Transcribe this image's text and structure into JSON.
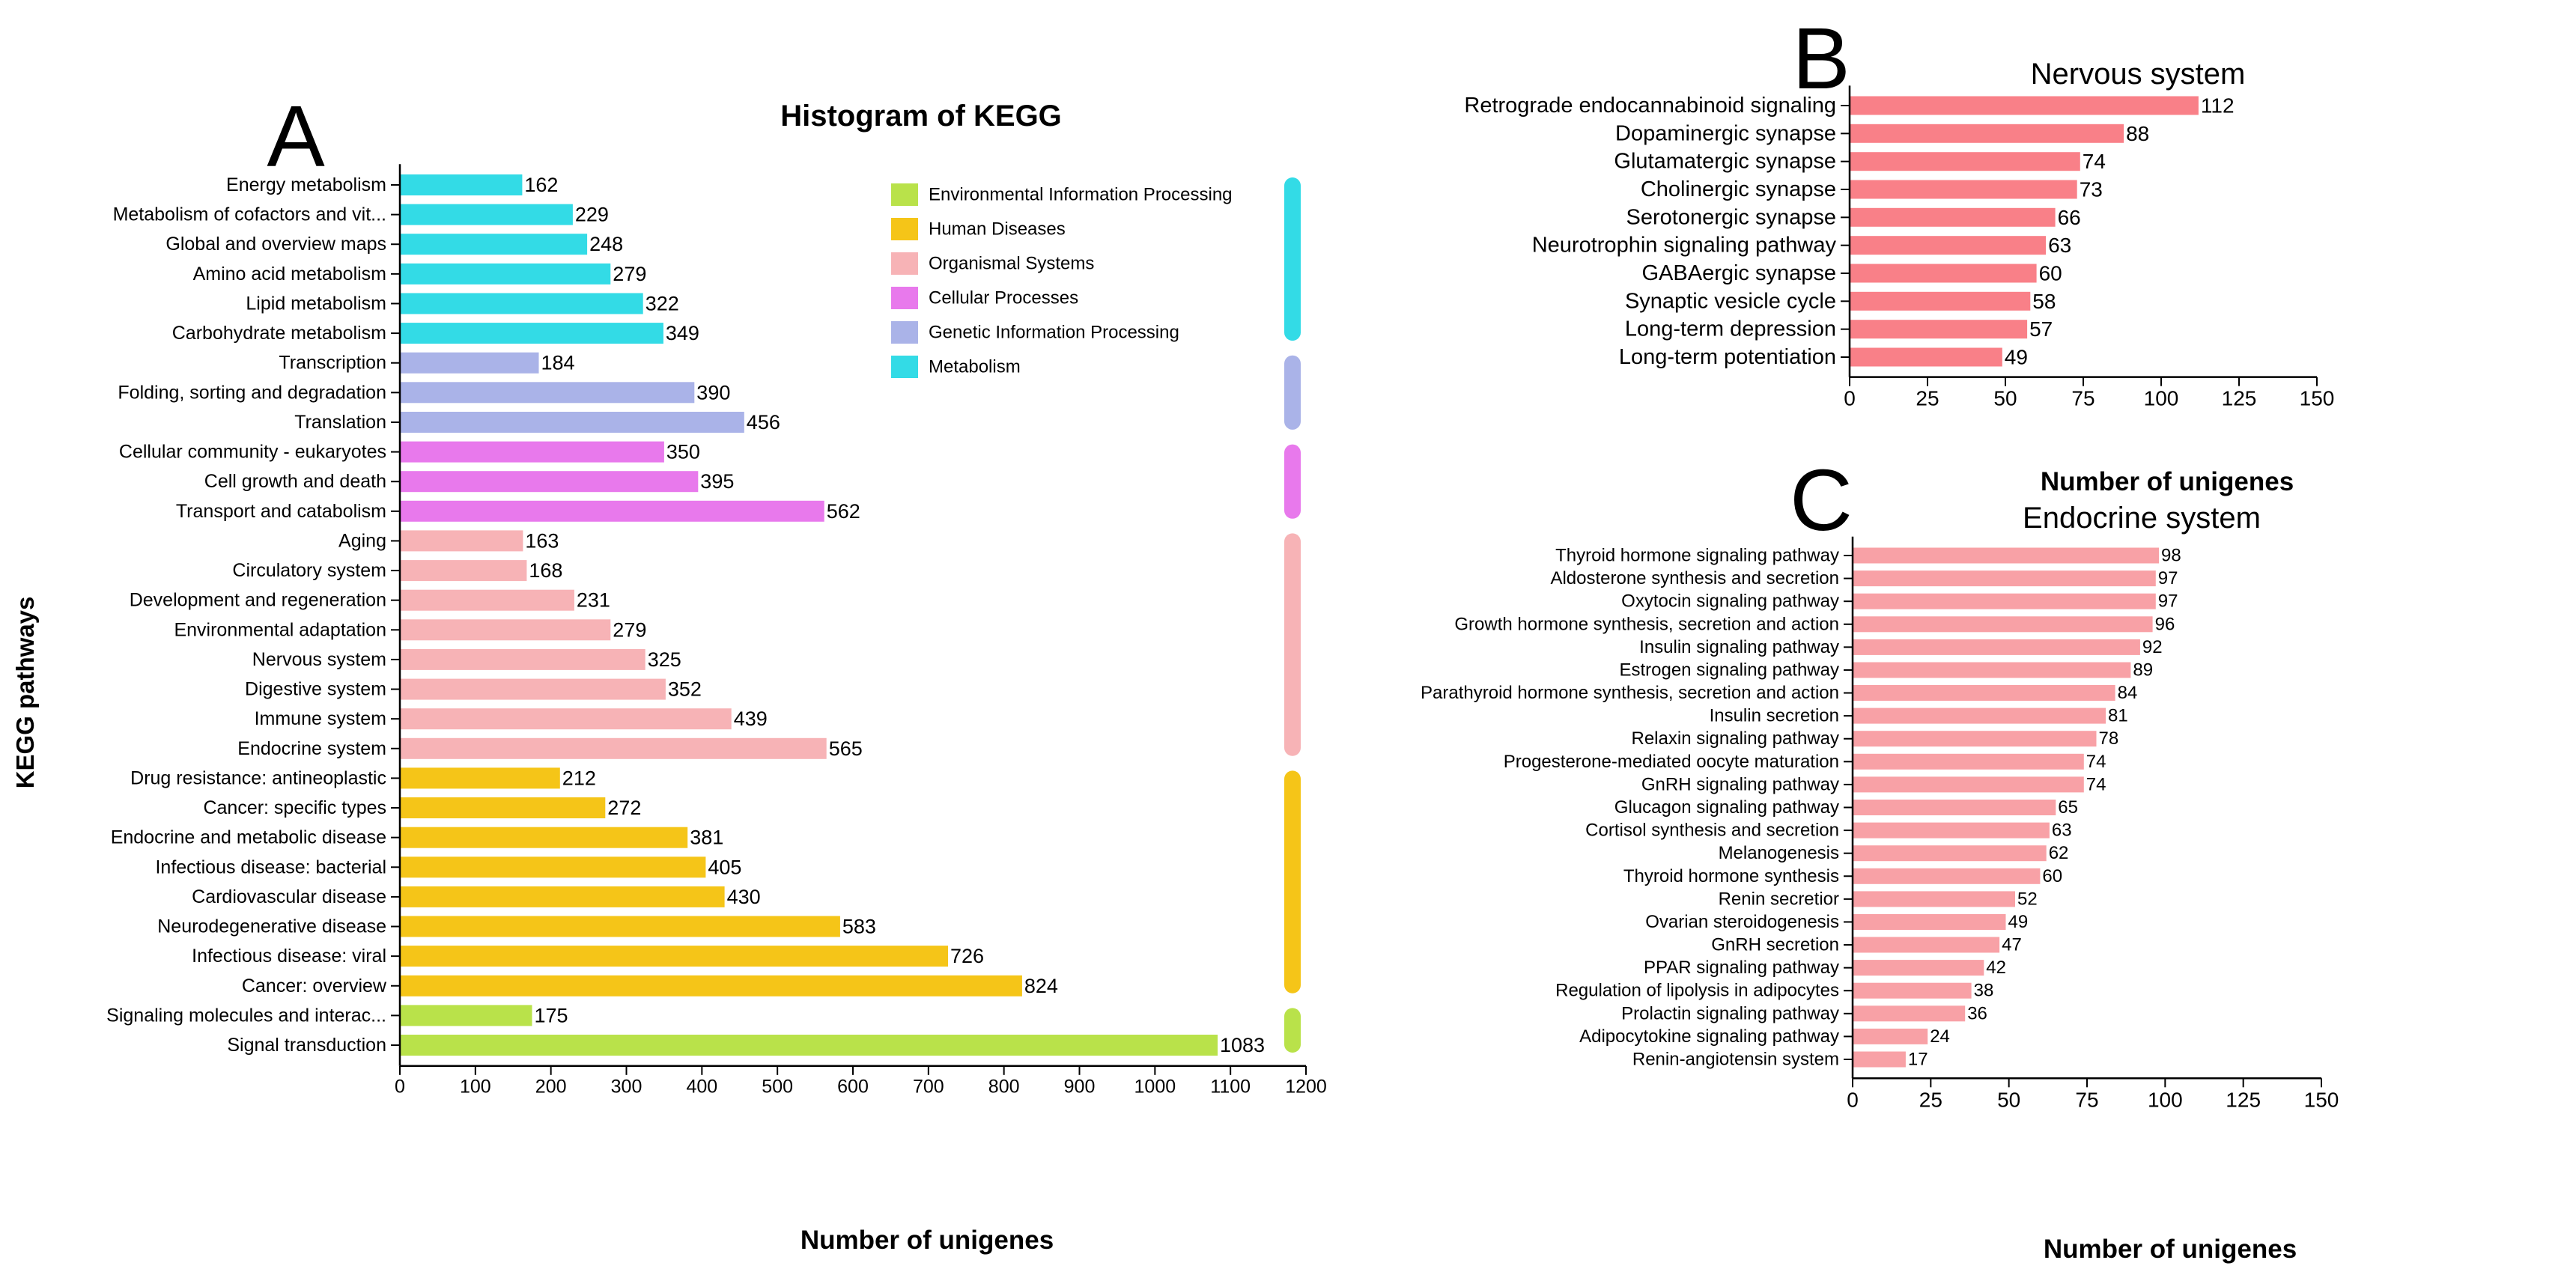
{
  "colors": {
    "Environmental Information Processing": "#b9e24a",
    "Human Diseases": "#f5c518",
    "Organismal Systems": "#f7b3b6",
    "Cellular Processes": "#e879ec",
    "Genetic Information Processing": "#aab3e8",
    "Metabolism": "#33dbe6",
    "panel_b_bar": "#f98088",
    "panel_c_bar": "#f8a1a6",
    "axis": "#000000"
  },
  "panel_a": {
    "letter": "A",
    "legend": [
      "Environmental Information Processing",
      "Human Diseases",
      "Organismal Systems",
      "Cellular Processes",
      "Genetic Information Processing",
      "Metabolism"
    ]
  },
  "panel_b": {
    "letter": "B"
  },
  "panel_c": {
    "letter": "C"
  },
  "chart_data": [
    {
      "id": "A",
      "type": "bar",
      "orientation": "horizontal",
      "title": "Histogram of KEGG",
      "xlabel": "Number of unigenes",
      "ylabel": "KEGG pathways",
      "xlim": [
        0,
        1200
      ],
      "xticks": [
        0,
        100,
        200,
        300,
        400,
        500,
        600,
        700,
        800,
        900,
        1000,
        1100,
        1200
      ],
      "grid": false,
      "legend_position": "top-right",
      "categories": [
        "Energy metabolism",
        "Metabolism of cofactors and vit...",
        "Global and overview maps",
        "Amino acid metabolism",
        "Lipid metabolism",
        "Carbohydrate metabolism",
        "Transcription",
        "Folding, sorting and degradation",
        "Translation",
        "Cellular community - eukaryotes",
        "Cell growth and death",
        "Transport and catabolism",
        "Aging",
        "Circulatory system",
        "Development and regeneration",
        "Environmental adaptation",
        "Nervous system",
        "Digestive system",
        "Immune system",
        "Endocrine system",
        "Drug resistance: antineoplastic",
        "Cancer: specific types",
        "Endocrine and metabolic disease",
        "Infectious disease: bacterial",
        "Cardiovascular disease",
        "Neurodegenerative disease",
        "Infectious disease: viral",
        "Cancer: overview",
        "Signaling molecules and interac...",
        "Signal transduction"
      ],
      "values": [
        162,
        229,
        248,
        279,
        322,
        349,
        184,
        390,
        456,
        350,
        395,
        562,
        163,
        168,
        231,
        279,
        325,
        352,
        439,
        565,
        212,
        272,
        381,
        405,
        430,
        583,
        726,
        824,
        175,
        1083
      ],
      "groups": [
        "Metabolism",
        "Metabolism",
        "Metabolism",
        "Metabolism",
        "Metabolism",
        "Metabolism",
        "Genetic Information Processing",
        "Genetic Information Processing",
        "Genetic Information Processing",
        "Cellular Processes",
        "Cellular Processes",
        "Cellular Processes",
        "Organismal Systems",
        "Organismal Systems",
        "Organismal Systems",
        "Organismal Systems",
        "Organismal Systems",
        "Organismal Systems",
        "Organismal Systems",
        "Organismal Systems",
        "Human Diseases",
        "Human Diseases",
        "Human Diseases",
        "Human Diseases",
        "Human Diseases",
        "Human Diseases",
        "Human Diseases",
        "Human Diseases",
        "Environmental Information Processing",
        "Environmental Information Processing"
      ]
    },
    {
      "id": "B",
      "type": "bar",
      "orientation": "horizontal",
      "title": "Nervous system",
      "xlabel": "Number of unigenes",
      "ylabel": "",
      "xlim": [
        0,
        150
      ],
      "xticks": [
        0,
        25,
        50,
        75,
        100,
        125,
        150
      ],
      "grid": false,
      "categories": [
        "Retrograde endocannabinoid signaling",
        "Dopaminergic synapse",
        "Glutamatergic synapse",
        "Cholinergic synapse",
        "Serotonergic synapse",
        "Neurotrophin signaling pathway",
        "GABAergic synapse",
        "Synaptic vesicle cycle",
        "Long-term depression",
        "Long-term potentiation"
      ],
      "values": [
        112,
        88,
        74,
        73,
        66,
        63,
        60,
        58,
        57,
        49
      ]
    },
    {
      "id": "C",
      "type": "bar",
      "orientation": "horizontal",
      "title": "Endocrine system",
      "xlabel": "Number of unigenes",
      "ylabel": "",
      "xlim": [
        0,
        150
      ],
      "xticks": [
        0,
        25,
        50,
        75,
        100,
        125,
        150
      ],
      "grid": false,
      "categories": [
        "Thyroid hormone signaling pathway",
        "Aldosterone synthesis and secretion",
        "Oxytocin signaling pathway",
        "Growth hormone synthesis, secretion and action",
        "Insulin signaling pathway",
        "Estrogen signaling pathway",
        "Parathyroid hormone synthesis, secretion and action",
        "Insulin secretion",
        "Relaxin signaling pathway",
        "Progesterone-mediated oocyte maturation",
        "GnRH signaling pathway",
        "Glucagon signaling pathway",
        "Cortisol synthesis and secretion",
        "Melanogenesis",
        "Thyroid hormone synthesis",
        "Renin secretior",
        "Ovarian steroidogenesis",
        "GnRH secretion",
        "PPAR signaling pathway",
        "Regulation of lipolysis in adipocytes",
        "Prolactin signaling pathway",
        "Adipocytokine signaling pathway",
        "Renin-angiotensin system"
      ],
      "values": [
        98,
        97,
        97,
        96,
        92,
        89,
        84,
        81,
        78,
        74,
        74,
        65,
        63,
        62,
        60,
        52,
        49,
        47,
        42,
        38,
        36,
        24,
        17
      ]
    }
  ]
}
